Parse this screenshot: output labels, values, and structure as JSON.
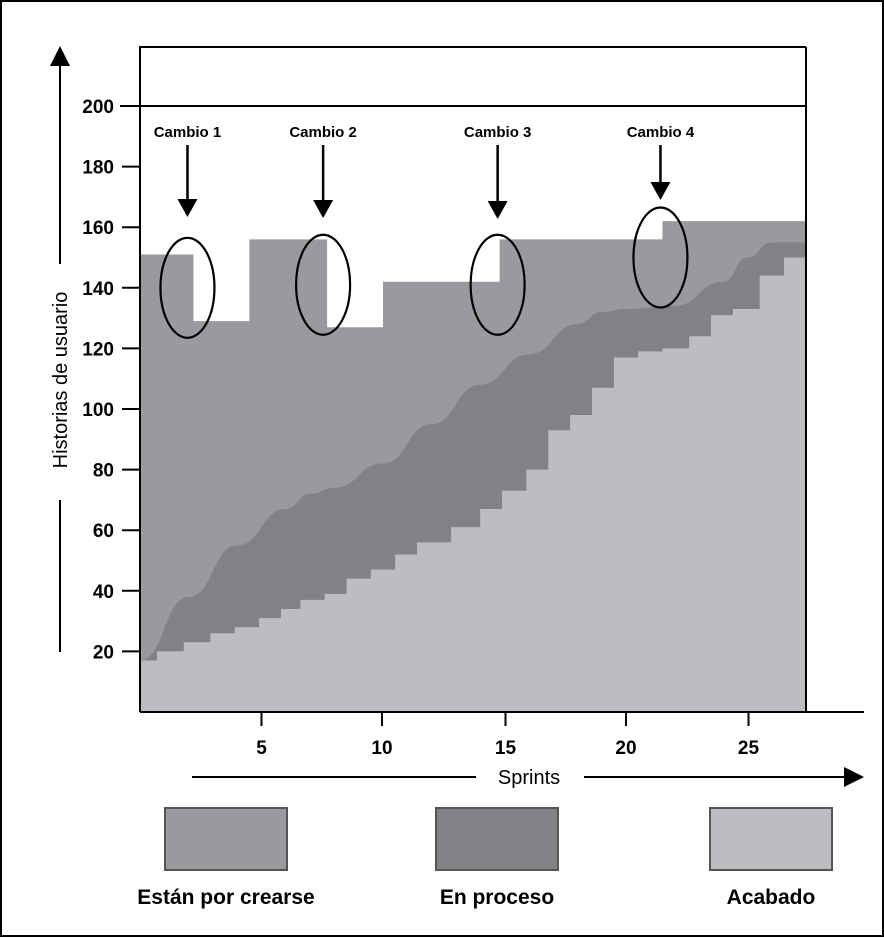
{
  "chart_data": {
    "type": "area",
    "xlabel": "Sprints",
    "ylabel": "Historias de usuario",
    "xlim": [
      0,
      28
    ],
    "ylim": [
      0,
      210
    ],
    "x_ticks": [
      "5",
      "10",
      "15",
      "20",
      "25"
    ],
    "y_ticks": [
      "20",
      "40",
      "60",
      "80",
      "100",
      "120",
      "140",
      "160",
      "180",
      "200"
    ],
    "grid": false,
    "reference_line": 200,
    "colors": {
      "pending": "#999a9d",
      "in_progress": "#818286",
      "done": "#bcbdc1"
    },
    "series": [
      {
        "name": "Están por crearse",
        "x": [
          0,
          2.2,
          2.2,
          4.5,
          4.5,
          7.7,
          7.7,
          10.0,
          10.0,
          14.8,
          14.8,
          20.2,
          20.2,
          21.5,
          21.5,
          22.5,
          23.7,
          28
        ],
        "values": [
          151,
          151,
          129,
          129,
          156,
          156,
          127,
          127,
          142,
          142,
          156,
          156,
          156,
          156,
          162,
          162,
          162,
          162
        ]
      },
      {
        "name": "En proceso",
        "x": [
          0,
          2,
          4,
          6,
          7,
          8,
          10,
          12,
          14,
          16,
          18,
          19,
          20,
          22,
          24,
          25,
          26,
          27,
          28
        ],
        "values": [
          17,
          38,
          55,
          67,
          72,
          74,
          82,
          95,
          108,
          118,
          128,
          132,
          133,
          134,
          142,
          150,
          155,
          155,
          155
        ]
      },
      {
        "name": "Acabado",
        "x": [
          0,
          0.7,
          1.8,
          2.9,
          3.9,
          4.9,
          5.8,
          6.6,
          7.6,
          8.5,
          9.5,
          10.5,
          11.4,
          12.8,
          14.0,
          14.9,
          15.9,
          16.8,
          17.7,
          18.6,
          19.5,
          20.5,
          21.5,
          22.6,
          23.5,
          24.4,
          25.5,
          26.5,
          28
        ],
        "values": [
          17,
          20,
          23,
          26,
          28,
          31,
          34,
          37,
          39,
          44,
          47,
          52,
          56,
          61,
          67,
          73,
          80,
          93,
          98,
          107,
          117,
          119,
          120,
          124,
          131,
          133,
          144,
          150,
          150
        ]
      }
    ],
    "annotations": [
      {
        "label": "Cambio 1",
        "x": 2.2,
        "y": 140
      },
      {
        "label": "Cambio 2",
        "x": 7.7,
        "y": 141
      },
      {
        "label": "Cambio 3",
        "x": 14.8,
        "y": 141
      },
      {
        "label": "Cambio 4",
        "x": 21.5,
        "y": 150
      }
    ]
  }
}
